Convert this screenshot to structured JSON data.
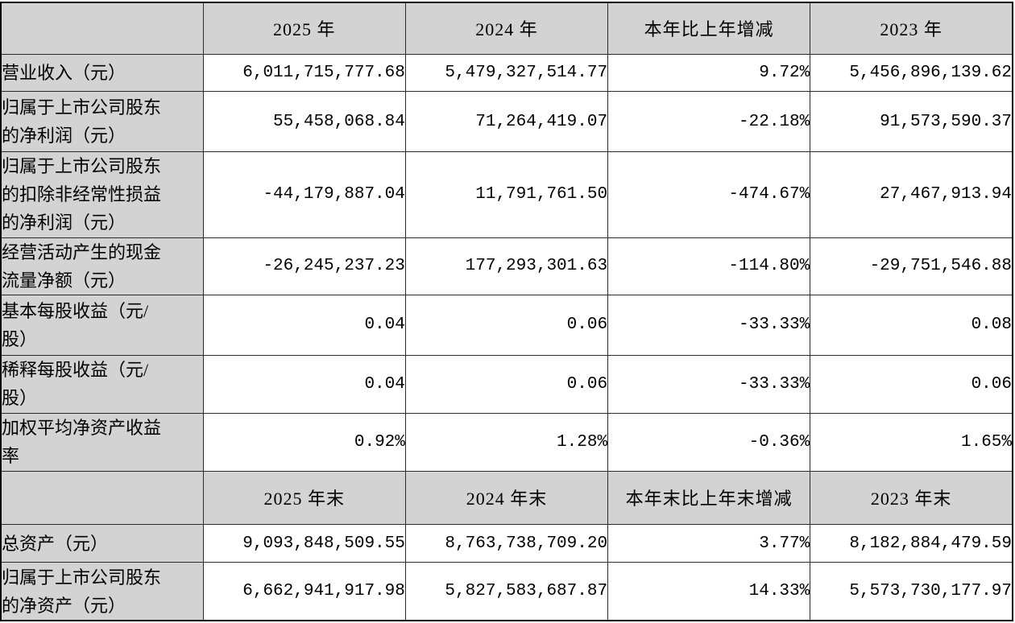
{
  "colors": {
    "header_fill": "#d3d3d3",
    "label_fill": "#d3d3d3",
    "cell_fill": "#ffffff",
    "border": "#2b2b2b",
    "text": "#000000"
  },
  "table": {
    "headers1": {
      "c0": "",
      "c1": "2025 年",
      "c2": "2024 年",
      "c3": "本年比上年增减",
      "c4": "2023 年"
    },
    "rows": [
      {
        "label": "营业收入（元）",
        "y2025": "6,011,715,777.68",
        "y2024": "5,479,327,514.77",
        "change": "9.72%",
        "y2023": "5,456,896,139.62"
      },
      {
        "label": "归属于上市公司股东\n的净利润（元）",
        "y2025": "55,458,068.84",
        "y2024": "71,264,419.07",
        "change": "-22.18%",
        "y2023": "91,573,590.37"
      },
      {
        "label": "归属于上市公司股东\n的扣除非经常性损益\n的净利润（元）",
        "y2025": "-44,179,887.04",
        "y2024": "11,791,761.50",
        "change": "-474.67%",
        "y2023": "27,467,913.94"
      },
      {
        "label": "经营活动产生的现金\n流量净额（元）",
        "y2025": "-26,245,237.23",
        "y2024": "177,293,301.63",
        "change": "-114.80%",
        "y2023": "-29,751,546.88"
      },
      {
        "label": "基本每股收益（元/\n股）",
        "y2025": "0.04",
        "y2024": "0.06",
        "change": "-33.33%",
        "y2023": "0.08"
      },
      {
        "label": "稀释每股收益（元/\n股）",
        "y2025": "0.04",
        "y2024": "0.06",
        "change": "-33.33%",
        "y2023": "0.06"
      },
      {
        "label": "加权平均净资产收益\n率",
        "y2025": "0.92%",
        "y2024": "1.28%",
        "change": "-0.36%",
        "y2023": "1.65%"
      },
      {
        "label": "总资产（元）",
        "y2025": "9,093,848,509.55",
        "y2024": "8,763,738,709.20",
        "change": "3.77%",
        "y2023": "8,182,884,479.59"
      },
      {
        "label": "归属于上市公司股东\n的净资产（元）",
        "y2025": "6,662,941,917.98",
        "y2024": "5,827,583,687.87",
        "change": "14.33%",
        "y2023": "5,573,730,177.97"
      }
    ],
    "headers2": {
      "c0": "",
      "c1": "2025 年末",
      "c2": "2024 年末",
      "c3": "本年末比上年末增减",
      "c4": "2023 年末"
    }
  }
}
